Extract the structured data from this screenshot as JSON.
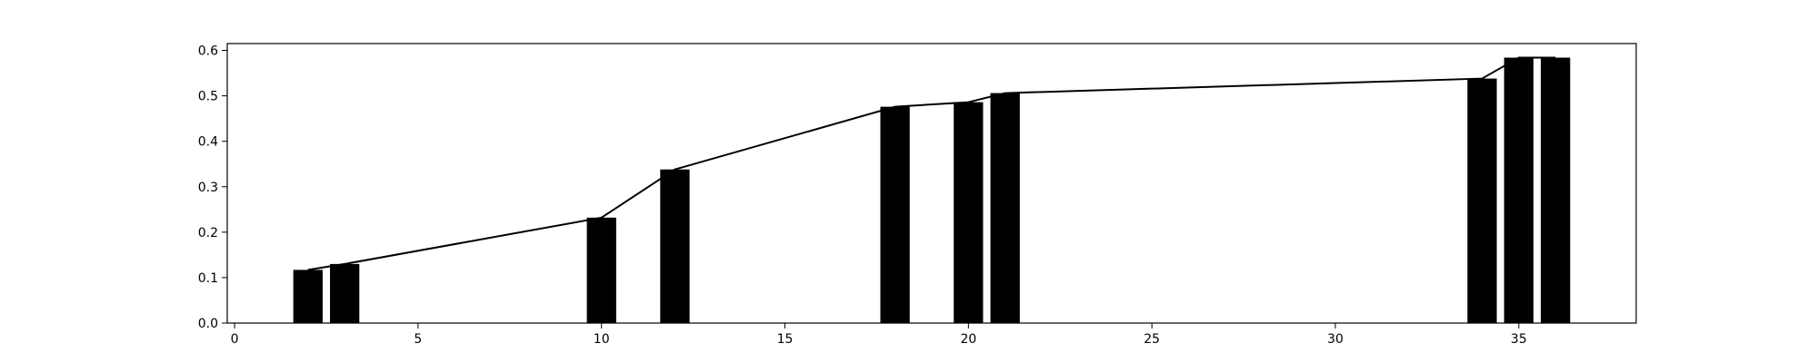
{
  "chart_data": {
    "type": "bar",
    "x": [
      2,
      3,
      10,
      12,
      18,
      20,
      21,
      34,
      35,
      36
    ],
    "values": [
      0.117,
      0.13,
      0.232,
      0.338,
      0.476,
      0.486,
      0.506,
      0.538,
      0.584,
      0.584
    ],
    "overlay_line": true,
    "title": "",
    "xlabel": "",
    "ylabel": "",
    "xlim": [
      -0.2,
      38.2
    ],
    "ylim": [
      0,
      0.615
    ],
    "xticks": [
      0,
      5,
      10,
      15,
      20,
      25,
      30,
      35
    ],
    "yticks": [
      0.0,
      0.1,
      0.2,
      0.3,
      0.4,
      0.5,
      0.6
    ],
    "xtick_labels": [
      "0",
      "5",
      "10",
      "15",
      "20",
      "25",
      "30",
      "35"
    ],
    "ytick_labels": [
      "0.0",
      "0.1",
      "0.2",
      "0.3",
      "0.4",
      "0.5",
      "0.6"
    ],
    "grid": false,
    "bar_color": "#000000",
    "line_color": "#000000"
  }
}
